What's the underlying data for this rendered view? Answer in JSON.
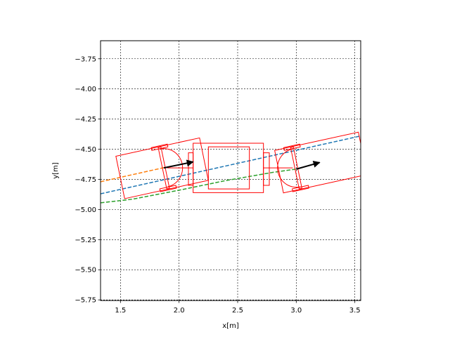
{
  "chart_data": {
    "type": "line",
    "title": "",
    "xlabel": "x[m]",
    "ylabel": "y[m]",
    "xlim": [
      1.33,
      3.55
    ],
    "ylim": [
      -5.755,
      -3.6
    ],
    "xticks": [
      1.5,
      2.0,
      2.5,
      3.0,
      3.5
    ],
    "xtick_labels": [
      "1.5",
      "2.0",
      "2.5",
      "3.0",
      "3.5"
    ],
    "yticks": [
      -3.75,
      -4.0,
      -4.25,
      -4.5,
      -4.75,
      -5.0,
      -5.25,
      -5.5,
      -5.75
    ],
    "ytick_labels": [
      "−3.75",
      "−4.00",
      "−4.25",
      "−4.50",
      "−4.75",
      "−5.00",
      "−5.25",
      "−5.50",
      "−5.75"
    ],
    "grid": true,
    "aspect": "equal",
    "colors": {
      "blue": "#1f77b4",
      "orange": "#ff7f0e",
      "green": "#2ca02c",
      "vehicle": "#ff0000",
      "arrow": "#000000"
    },
    "series": [
      {
        "color": "blue",
        "style": "dashed",
        "x": [
          1.33,
          3.55
        ],
        "y": [
          -4.87,
          -4.39
        ]
      },
      {
        "color": "orange",
        "style": "dashed",
        "x": [
          1.33,
          1.87
        ],
        "y": [
          -4.77,
          -4.653
        ]
      },
      {
        "color": "green",
        "style": "dashed",
        "x": [
          1.33,
          1.6,
          2.0,
          2.4,
          2.8,
          3.0
        ],
        "y": [
          -4.945,
          -4.915,
          -4.84,
          -4.76,
          -4.692,
          -4.665
        ]
      }
    ],
    "vehicle": {
      "body_outer": {
        "x": [
          2.12,
          2.72
        ],
        "y": [
          -4.86,
          -4.45
        ]
      },
      "body_inner": {
        "x": [
          2.25,
          2.6
        ],
        "y": [
          -4.83,
          -4.48
        ]
      },
      "front_coupler": {
        "x": [
          2.72,
          2.77
        ],
        "y": [
          -4.8,
          -4.53
        ]
      },
      "rear_coupler": {
        "x": [
          2.08,
          2.12
        ],
        "y": [
          -4.8,
          -4.53
        ]
      },
      "tractor": {
        "center": [
          3.0,
          -4.655
        ],
        "heading_deg": 12,
        "length": 0.73,
        "width": 0.36,
        "rear_overhang": 0.15,
        "axle_length": 0.35,
        "hitch_radius": 0.16
      },
      "trailer": {
        "center": [
          1.87,
          -4.655
        ],
        "heading_deg": 12,
        "length": 0.73,
        "width": 0.36,
        "rear_overhang": 0.35,
        "axle_length": 0.35,
        "hitch_radius": 0.16
      },
      "arrows": [
        {
          "from": [
            1.87,
            -4.655
          ],
          "to": [
            2.12,
            -4.605
          ]
        },
        {
          "from": [
            3.0,
            -4.665
          ],
          "to": [
            3.2,
            -4.61
          ]
        }
      ]
    }
  }
}
